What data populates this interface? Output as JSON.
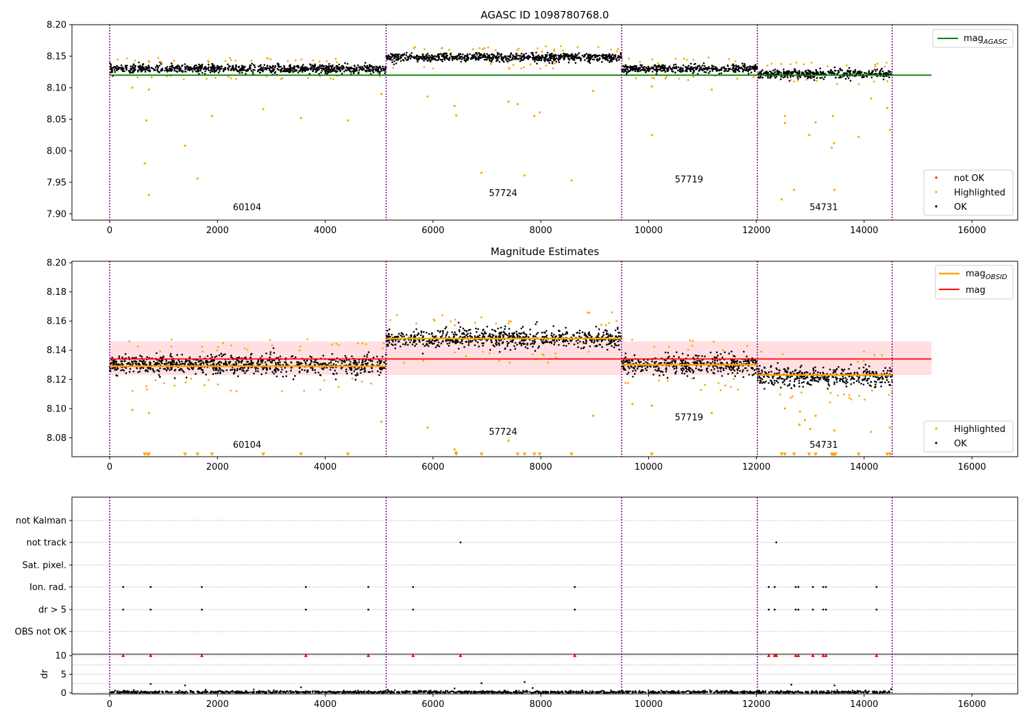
{
  "chart_data": [
    {
      "type": "scatter",
      "title": "AGASC ID 1098780768.0",
      "xlim": [
        -700,
        16850
      ],
      "ylim": [
        7.89,
        8.2
      ],
      "xticks": [
        0,
        2000,
        4000,
        6000,
        8000,
        10000,
        12000,
        14000,
        16000
      ],
      "yticks": [
        7.9,
        7.95,
        8.0,
        8.05,
        8.1,
        8.15,
        8.2
      ],
      "obs_boundaries": [
        0,
        5130,
        9500,
        12020,
        14520
      ],
      "obs_labels": [
        {
          "text": "60104",
          "x": 2550,
          "y": 7.906
        },
        {
          "text": "57724",
          "x": 7300,
          "y": 7.928
        },
        {
          "text": "57719",
          "x": 10750,
          "y": 7.95
        },
        {
          "text": "54731",
          "x": 13250,
          "y": 7.906
        }
      ],
      "segments": [
        {
          "x0": 0,
          "x1": 5130,
          "center": 8.13,
          "spread": 0.006
        },
        {
          "x0": 5130,
          "x1": 9500,
          "center": 8.148,
          "spread": 0.006
        },
        {
          "x0": 9500,
          "x1": 12020,
          "center": 8.13,
          "spread": 0.006
        },
        {
          "x0": 12020,
          "x1": 14520,
          "center": 8.122,
          "spread": 0.006
        }
      ],
      "mag_agasc": {
        "value": 8.12,
        "x0": 0,
        "x1": 15250,
        "color": "#008000"
      },
      "highlighted_points": [
        [
          650,
          7.98
        ],
        [
          730,
          7.93
        ],
        [
          680,
          8.048
        ],
        [
          1400,
          8.008
        ],
        [
          1630,
          7.956
        ],
        [
          1900,
          8.055
        ],
        [
          2850,
          8.066
        ],
        [
          3550,
          8.052
        ],
        [
          4420,
          8.048
        ],
        [
          420,
          8.1
        ],
        [
          730,
          8.097
        ],
        [
          5040,
          8.09
        ],
        [
          5900,
          8.086
        ],
        [
          6400,
          8.071
        ],
        [
          6430,
          8.056
        ],
        [
          6900,
          7.965
        ],
        [
          7400,
          8.078
        ],
        [
          7570,
          8.074
        ],
        [
          7700,
          7.961
        ],
        [
          7880,
          8.055
        ],
        [
          7980,
          8.061
        ],
        [
          8570,
          7.953
        ],
        [
          8970,
          8.095
        ],
        [
          10060,
          8.025
        ],
        [
          10060,
          8.102
        ],
        [
          11170,
          8.097
        ],
        [
          12470,
          7.923
        ],
        [
          12530,
          8.055
        ],
        [
          12530,
          8.044
        ],
        [
          12700,
          7.938
        ],
        [
          12980,
          8.025
        ],
        [
          13100,
          8.045
        ],
        [
          13400,
          8.005
        ],
        [
          13440,
          8.012
        ],
        [
          13420,
          8.055
        ],
        [
          13450,
          7.938
        ],
        [
          13900,
          8.022
        ],
        [
          14130,
          8.083
        ],
        [
          14480,
          8.033
        ],
        [
          14430,
          8.068
        ]
      ],
      "legend_lines": [
        {
          "label": "mag",
          "sub": "AGASC",
          "color": "#008000"
        }
      ],
      "legend_points": [
        {
          "label": "not OK",
          "color": "#ff0000"
        },
        {
          "label": "Highlighted",
          "color": "#ffa500"
        },
        {
          "label": "OK",
          "color": "#000000"
        }
      ]
    },
    {
      "type": "scatter",
      "title": "Magnitude Estimates",
      "xlim": [
        -700,
        16850
      ],
      "ylim": [
        8.067,
        8.201
      ],
      "xticks": [
        0,
        2000,
        4000,
        6000,
        8000,
        10000,
        12000,
        14000,
        16000
      ],
      "yticks": [
        8.08,
        8.1,
        8.12,
        8.14,
        8.16,
        8.18,
        8.2
      ],
      "obs_boundaries": [
        0,
        5130,
        9500,
        12020,
        14520
      ],
      "obs_labels": [
        {
          "text": "60104",
          "x": 2550,
          "y": 8.073
        },
        {
          "text": "57724",
          "x": 7300,
          "y": 8.082
        },
        {
          "text": "57719",
          "x": 10750,
          "y": 8.092
        },
        {
          "text": "54731",
          "x": 13250,
          "y": 8.073
        }
      ],
      "segments": [
        {
          "x0": 0,
          "x1": 5130,
          "center": 8.13,
          "spread": 0.006
        },
        {
          "x0": 5130,
          "x1": 9500,
          "center": 8.148,
          "spread": 0.006
        },
        {
          "x0": 9500,
          "x1": 12020,
          "center": 8.13,
          "spread": 0.006
        },
        {
          "x0": 12020,
          "x1": 14520,
          "center": 8.122,
          "spread": 0.006
        }
      ],
      "mag_obsid": [
        {
          "x0": 0,
          "x1": 5130,
          "value": 8.129
        },
        {
          "x0": 5130,
          "x1": 9500,
          "value": 8.148
        },
        {
          "x0": 9500,
          "x1": 12020,
          "value": 8.13
        },
        {
          "x0": 12020,
          "x1": 14520,
          "value": 8.123
        }
      ],
      "mag": {
        "value": 8.134,
        "band_low": 8.123,
        "band_high": 8.146,
        "x0": 0,
        "x1": 15250,
        "color": "#ff0000"
      },
      "highlighted_points": [
        [
          420,
          8.099
        ],
        [
          730,
          8.097
        ],
        [
          5040,
          8.091
        ],
        [
          5900,
          8.087
        ],
        [
          6400,
          8.072
        ],
        [
          6430,
          8.07
        ],
        [
          7400,
          8.078
        ],
        [
          8970,
          8.095
        ],
        [
          10060,
          8.102
        ],
        [
          11170,
          8.097
        ],
        [
          9700,
          8.103
        ],
        [
          12530,
          8.1
        ],
        [
          12810,
          8.098
        ],
        [
          12900,
          8.092
        ],
        [
          13100,
          8.095
        ],
        [
          13450,
          8.085
        ],
        [
          14130,
          8.084
        ],
        [
          14480,
          8.087
        ],
        [
          12800,
          8.089
        ],
        [
          13000,
          8.086
        ]
      ],
      "clipped_points": [
        650,
        700,
        730,
        1400,
        1630,
        1900,
        2850,
        3550,
        4420,
        6430,
        6900,
        7570,
        7700,
        7880,
        7980,
        8570,
        10060,
        12470,
        12530,
        12700,
        12980,
        13100,
        13400,
        13420,
        13440,
        13450,
        13470,
        13900,
        14430,
        14480
      ],
      "legend_lines": [
        {
          "label": "mag",
          "sub": "OBSID",
          "color": "#ffa500"
        },
        {
          "label": "mag",
          "sub": "",
          "color": "#ff0000"
        }
      ],
      "legend_points": [
        {
          "label": "Highlighted",
          "color": "#ffa500"
        },
        {
          "label": "OK",
          "color": "#000000"
        }
      ]
    },
    {
      "type": "scatter",
      "xlim": [
        -700,
        16850
      ],
      "xticks": [
        0,
        2000,
        4000,
        6000,
        8000,
        10000,
        12000,
        14000,
        16000
      ],
      "obs_boundaries": [
        0,
        5130,
        9500,
        12020,
        14520
      ],
      "flag_rows": [
        "not Kalman",
        "not track",
        "Sat. pixel.",
        "Ion. rad.",
        "dr > 5",
        "OBS not OK"
      ],
      "flag_points": {
        "not Kalman": [],
        "not track": [
          6510,
          12370
        ],
        "Sat. pixel.": [],
        "Ion. rad.": [
          250,
          760,
          1710,
          3640,
          4800,
          5630,
          8630,
          12230,
          12340,
          12730,
          12780,
          13050,
          13240,
          13290,
          14230
        ],
        "dr > 5": [
          250,
          760,
          1710,
          3640,
          4800,
          5630,
          8630,
          12230,
          12340,
          12730,
          12780,
          13050,
          13240,
          13290,
          14230
        ],
        "OBS not OK": []
      },
      "dr_ylim": [
        -0.3,
        10.4
      ],
      "dr_yticks": [
        0,
        5,
        10
      ],
      "dr_ylabel": "dr",
      "dr_clipped": [
        250,
        760,
        1710,
        3640,
        4800,
        5630,
        6510,
        8630,
        12230,
        12340,
        12370,
        12730,
        12780,
        13050,
        13240,
        13290,
        14230
      ],
      "dr_outliers": [
        [
          760,
          2.4
        ],
        [
          1400,
          2.0
        ],
        [
          3550,
          1.5
        ],
        [
          6400,
          1.2
        ],
        [
          6900,
          2.6
        ],
        [
          7700,
          2.9
        ],
        [
          7850,
          1.3
        ],
        [
          12650,
          2.2
        ],
        [
          13450,
          2.0
        ],
        [
          14500,
          1.0
        ]
      ]
    }
  ]
}
